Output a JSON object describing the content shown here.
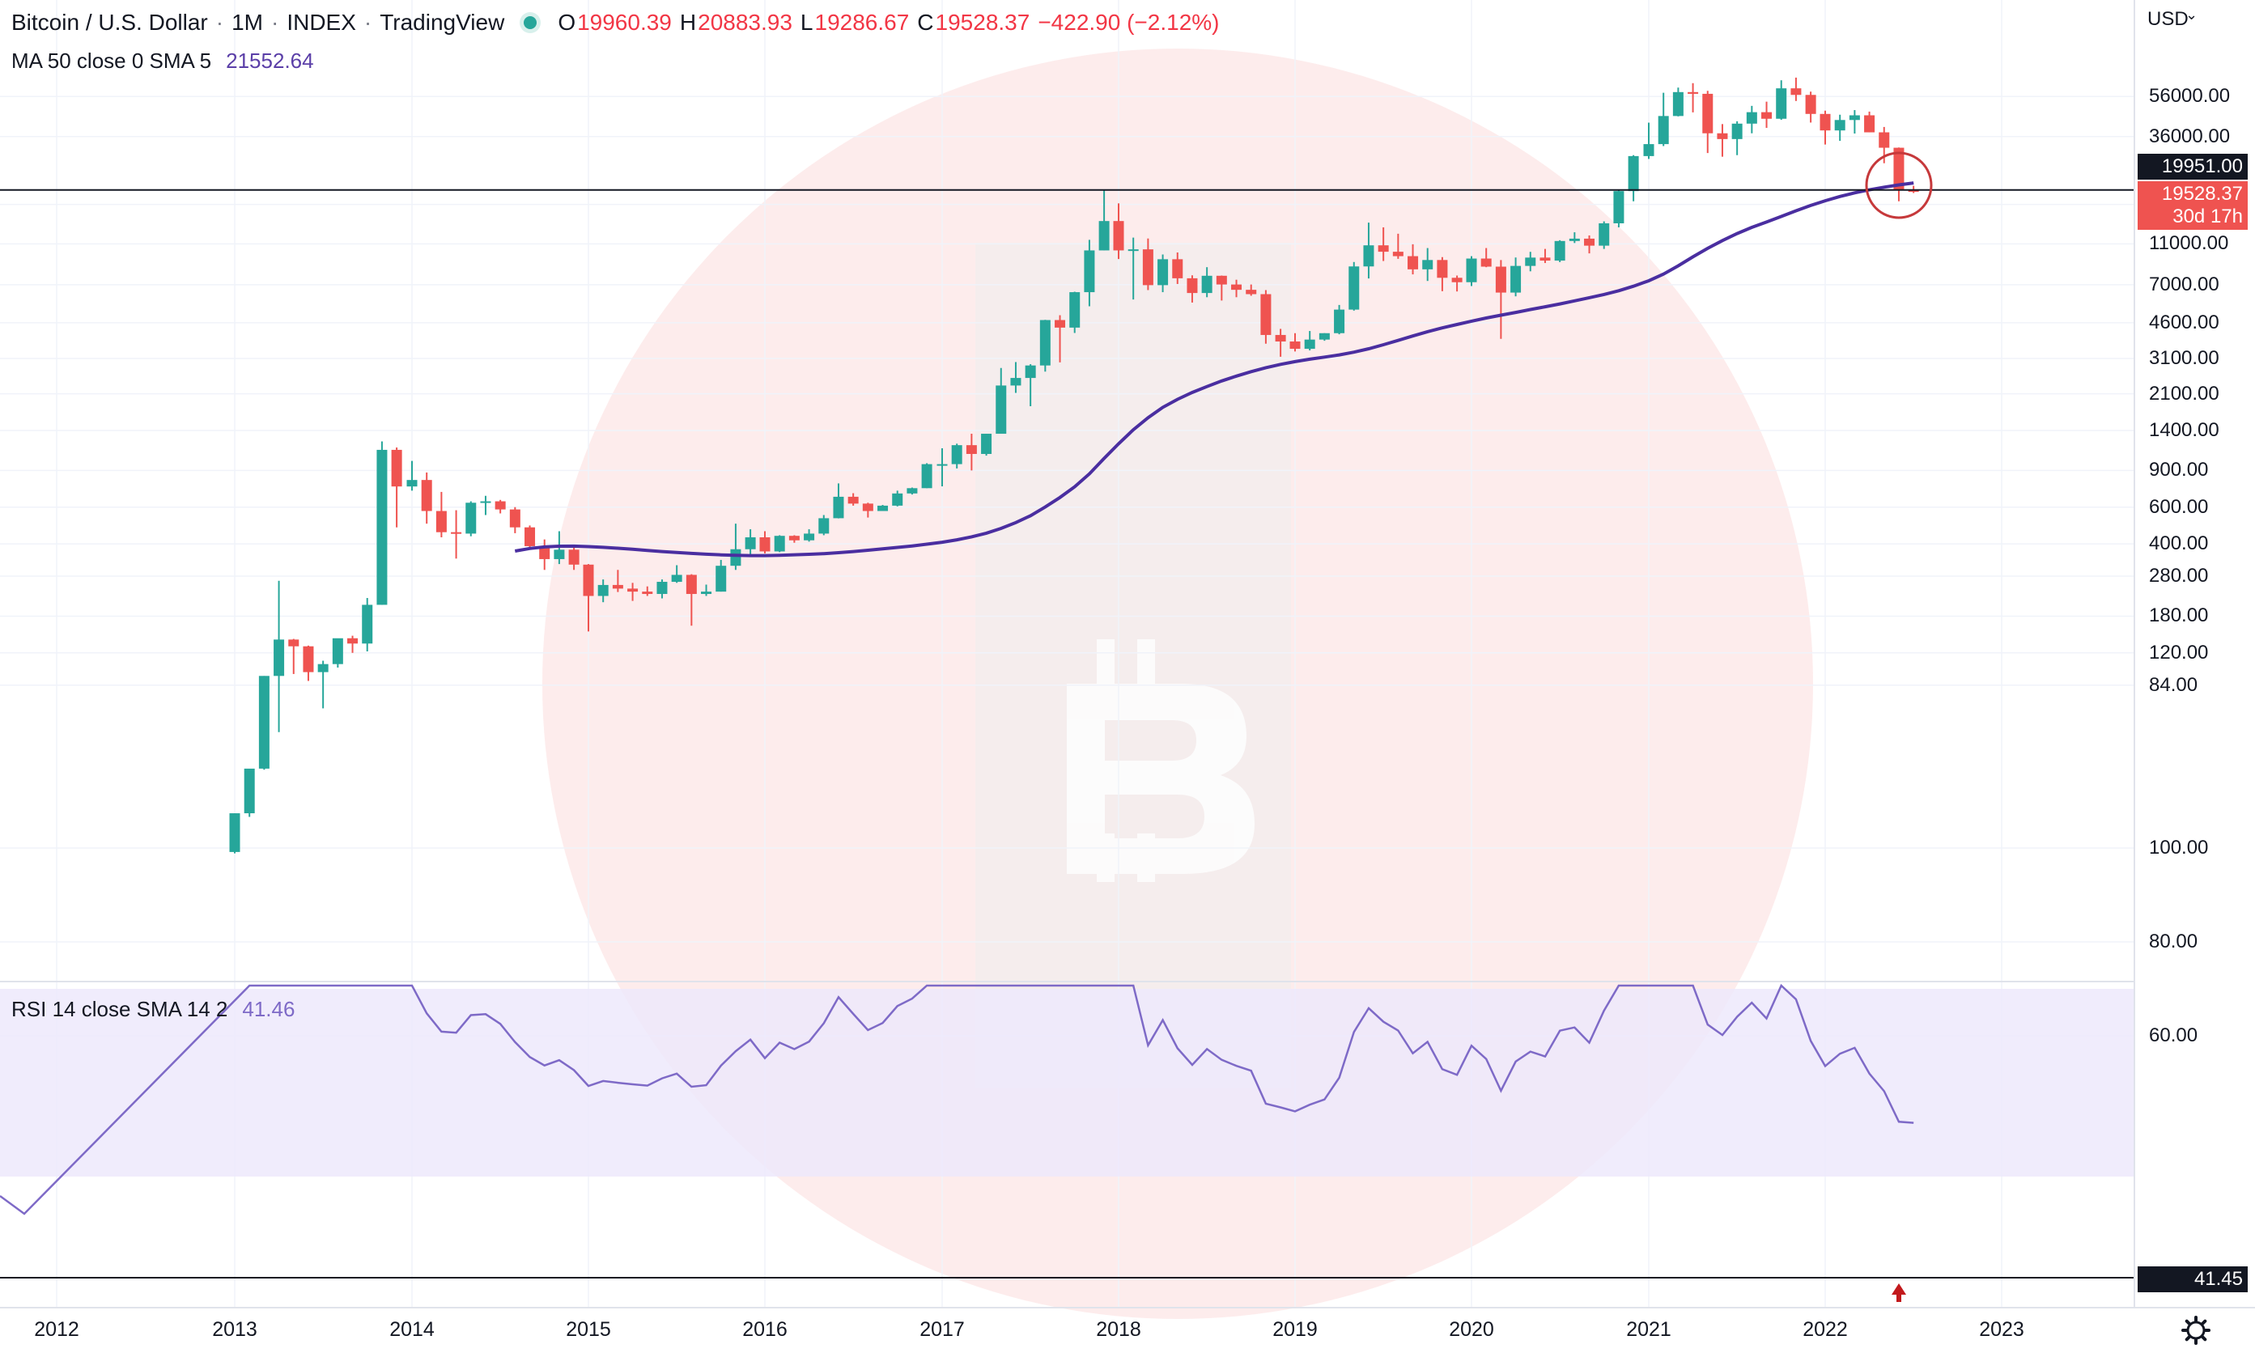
{
  "header": {
    "symbol": "Bitcoin / U.S. Dollar",
    "interval": "1M",
    "exchange": "INDEX",
    "source": "TradingView",
    "ohlc": {
      "o_label": "O",
      "o": "19960.39",
      "h_label": "H",
      "h": "20883.93",
      "l_label": "L",
      "l": "19286.67",
      "c_label": "C",
      "c": "19528.37",
      "change": "−422.90 (−2.12%)"
    },
    "ma_label": "MA 50 close 0 SMA 5",
    "ma_value": "21552.64",
    "rsi_label": "RSI 14 close SMA 14 2",
    "rsi_value": "41.46"
  },
  "price_axis": {
    "currency": "USD",
    "ticks": [
      "56000.00",
      "36000.00",
      "11000.00",
      "7000.00",
      "4600.00",
      "3100.00",
      "2100.00",
      "1400.00",
      "900.00",
      "600.00",
      "400.00",
      "280.00",
      "180.00",
      "120.00",
      "84.00"
    ],
    "horizontal_line_value": "19951.00",
    "last_price": "19528.37",
    "countdown": "30d 17h"
  },
  "rsi_axis": {
    "ticks": [
      "100.00",
      "80.00",
      "60.00"
    ],
    "current": "41.45"
  },
  "time_axis": {
    "labels": [
      "2012",
      "2013",
      "2014",
      "2015",
      "2016",
      "2017",
      "2018",
      "2019",
      "2020",
      "2021",
      "2022",
      "2023"
    ]
  },
  "colors": {
    "up": "#26a69a",
    "down": "#ef5350",
    "ma": "#4a2ea0",
    "rsi": "#7e6ac7",
    "band": "#ede9fb",
    "circle": "#c6393b",
    "watermark": "#fde9e9"
  },
  "icons": {
    "settings": "gear-icon",
    "signal": "arrow-up-icon",
    "logo": "bitcoin-logo"
  },
  "chart_data": [
    {
      "type": "candlestick",
      "scale": "log",
      "note": "Bitcoin monthly OHLC, index price",
      "monthly": [
        [
          "2013-01",
          13.3,
          20.4,
          13.1,
          20.4
        ],
        [
          "2013-02",
          20.4,
          31.9,
          19.6,
          33.4
        ],
        [
          "2013-03",
          33.4,
          93,
          33,
          93
        ],
        [
          "2013-04",
          93,
          266,
          50,
          139
        ],
        [
          "2013-05",
          139,
          140,
          95,
          129
        ],
        [
          "2013-06",
          129,
          130,
          88,
          97
        ],
        [
          "2013-07",
          97,
          110,
          65,
          106
        ],
        [
          "2013-08",
          106,
          140,
          102,
          141
        ],
        [
          "2013-09",
          141,
          145,
          120,
          133
        ],
        [
          "2013-10",
          133,
          220,
          122,
          204
        ],
        [
          "2013-11",
          204,
          1240,
          204,
          1130
        ],
        [
          "2013-12",
          1130,
          1160,
          480,
          754
        ],
        [
          "2014-01",
          754,
          1000,
          720,
          810
        ],
        [
          "2014-02",
          810,
          880,
          500,
          575
        ],
        [
          "2014-03",
          575,
          710,
          430,
          455
        ],
        [
          "2014-04",
          455,
          580,
          340,
          448
        ],
        [
          "2014-05",
          448,
          640,
          435,
          630
        ],
        [
          "2014-06",
          630,
          680,
          550,
          640
        ],
        [
          "2014-07",
          640,
          650,
          560,
          585
        ],
        [
          "2014-08",
          585,
          600,
          450,
          480
        ],
        [
          "2014-09",
          480,
          490,
          380,
          390
        ],
        [
          "2014-10",
          390,
          420,
          300,
          338
        ],
        [
          "2014-11",
          338,
          460,
          320,
          375
        ],
        [
          "2014-12",
          375,
          390,
          300,
          318
        ],
        [
          "2015-01",
          318,
          320,
          152,
          225
        ],
        [
          "2015-02",
          225,
          270,
          210,
          254
        ],
        [
          "2015-03",
          254,
          300,
          235,
          244
        ],
        [
          "2015-04",
          244,
          260,
          213,
          236
        ],
        [
          "2015-05",
          236,
          250,
          225,
          230
        ],
        [
          "2015-06",
          230,
          270,
          219,
          263
        ],
        [
          "2015-07",
          263,
          316,
          260,
          284
        ],
        [
          "2015-08",
          284,
          286,
          162,
          230
        ],
        [
          "2015-09",
          230,
          255,
          225,
          236
        ],
        [
          "2015-10",
          236,
          335,
          236,
          314
        ],
        [
          "2015-11",
          314,
          500,
          300,
          377
        ],
        [
          "2015-12",
          377,
          470,
          350,
          430
        ],
        [
          "2016-01",
          430,
          460,
          360,
          368
        ],
        [
          "2016-02",
          368,
          440,
          365,
          437
        ],
        [
          "2016-03",
          437,
          440,
          405,
          416
        ],
        [
          "2016-04",
          416,
          470,
          410,
          448
        ],
        [
          "2016-05",
          448,
          550,
          440,
          531
        ],
        [
          "2016-06",
          531,
          780,
          530,
          673
        ],
        [
          "2016-07",
          673,
          700,
          610,
          624
        ],
        [
          "2016-08",
          624,
          630,
          535,
          575
        ],
        [
          "2016-09",
          575,
          615,
          590,
          610
        ],
        [
          "2016-10",
          610,
          720,
          605,
          698
        ],
        [
          "2016-11",
          698,
          745,
          690,
          740
        ],
        [
          "2016-12",
          740,
          975,
          740,
          965
        ],
        [
          "2017-01",
          965,
          1150,
          755,
          965
        ],
        [
          "2017-02",
          965,
          1210,
          920,
          1190
        ],
        [
          "2017-03",
          1190,
          1350,
          900,
          1080
        ],
        [
          "2017-04",
          1080,
          1350,
          1060,
          1350
        ],
        [
          "2017-05",
          1350,
          2790,
          1350,
          2300
        ],
        [
          "2017-06",
          2300,
          2980,
          2120,
          2500
        ],
        [
          "2017-07",
          2500,
          2910,
          1830,
          2870
        ],
        [
          "2017-08",
          2870,
          4750,
          2680,
          4740
        ],
        [
          "2017-09",
          4740,
          5000,
          2970,
          4360
        ],
        [
          "2017-10",
          4360,
          6480,
          4110,
          6450
        ],
        [
          "2017-11",
          6450,
          11500,
          5520,
          10230
        ],
        [
          "2017-12",
          10230,
          20090,
          10230,
          14150
        ],
        [
          "2018-01",
          14150,
          17200,
          9300,
          10230
        ],
        [
          "2018-02",
          10230,
          11790,
          5950,
          10350
        ],
        [
          "2018-03",
          10350,
          11670,
          6600,
          6970
        ],
        [
          "2018-04",
          6970,
          9780,
          6450,
          9280
        ],
        [
          "2018-05",
          9280,
          10000,
          7060,
          7520
        ],
        [
          "2018-06",
          7520,
          7770,
          5750,
          6390
        ],
        [
          "2018-07",
          6390,
          8500,
          6100,
          7730
        ],
        [
          "2018-08",
          7730,
          7750,
          5880,
          7020
        ],
        [
          "2018-09",
          7020,
          7400,
          6100,
          6620
        ],
        [
          "2018-10",
          6620,
          7020,
          6200,
          6310
        ],
        [
          "2018-11",
          6310,
          6600,
          3650,
          4020
        ],
        [
          "2018-12",
          4020,
          4300,
          3160,
          3740
        ],
        [
          "2019-01",
          3740,
          4100,
          3350,
          3450
        ],
        [
          "2019-02",
          3450,
          4200,
          3390,
          3820
        ],
        [
          "2019-03",
          3820,
          4100,
          3770,
          4100
        ],
        [
          "2019-04",
          4100,
          5600,
          4050,
          5320
        ],
        [
          "2019-05",
          5320,
          9000,
          5260,
          8570
        ],
        [
          "2019-06",
          8570,
          13900,
          7500,
          10820
        ],
        [
          "2019-07",
          10820,
          13200,
          9100,
          10080
        ],
        [
          "2019-08",
          10080,
          12300,
          9320,
          9600
        ],
        [
          "2019-09",
          9600,
          10950,
          7850,
          8300
        ],
        [
          "2019-10",
          8300,
          10500,
          7300,
          9200
        ],
        [
          "2019-11",
          9200,
          9500,
          6520,
          7560
        ],
        [
          "2019-12",
          7560,
          7750,
          6500,
          7200
        ],
        [
          "2020-01",
          7200,
          9600,
          6900,
          9350
        ],
        [
          "2020-02",
          9350,
          10500,
          8500,
          8550
        ],
        [
          "2020-03",
          8550,
          9200,
          3850,
          6420
        ],
        [
          "2020-04",
          6420,
          9460,
          6160,
          8620
        ],
        [
          "2020-05",
          8620,
          10070,
          8120,
          9450
        ],
        [
          "2020-06",
          9450,
          10400,
          8900,
          9140
        ],
        [
          "2020-07",
          9140,
          11450,
          8990,
          11350
        ],
        [
          "2020-08",
          11350,
          12500,
          11100,
          11650
        ],
        [
          "2020-09",
          11650,
          12070,
          9900,
          10780
        ],
        [
          "2020-10",
          10780,
          14100,
          10400,
          13800
        ],
        [
          "2020-11",
          13800,
          19900,
          13200,
          19700
        ],
        [
          "2020-12",
          19700,
          29300,
          17600,
          29000
        ],
        [
          "2021-01",
          29000,
          41950,
          28100,
          33100
        ],
        [
          "2021-02",
          33100,
          58350,
          32400,
          45150
        ],
        [
          "2021-03",
          45150,
          61800,
          44950,
          58800
        ],
        [
          "2021-04",
          58800,
          64900,
          47000,
          57700
        ],
        [
          "2021-05",
          57700,
          59600,
          30000,
          37300
        ],
        [
          "2021-06",
          37300,
          41300,
          28800,
          35000
        ],
        [
          "2021-07",
          35000,
          42600,
          29300,
          41500
        ],
        [
          "2021-08",
          41500,
          50500,
          37300,
          47100
        ],
        [
          "2021-09",
          47100,
          52900,
          39600,
          43800
        ],
        [
          "2021-10",
          43800,
          67000,
          43300,
          61300
        ],
        [
          "2021-11",
          61300,
          69000,
          53300,
          57000
        ],
        [
          "2021-12",
          57000,
          59100,
          42000,
          46200
        ],
        [
          "2022-01",
          46200,
          47900,
          32950,
          38500
        ],
        [
          "2022-02",
          38500,
          45800,
          34300,
          43200
        ],
        [
          "2022-03",
          43200,
          48200,
          37200,
          45500
        ],
        [
          "2022-04",
          45500,
          47400,
          37700,
          37700
        ],
        [
          "2022-05",
          37700,
          40000,
          26800,
          31800
        ],
        [
          "2022-06",
          31800,
          31900,
          17600,
          19960
        ],
        [
          "2022-07",
          19960,
          20883.93,
          19286.67,
          19528.37
        ]
      ]
    },
    {
      "type": "line",
      "name": "MA 50 close 0 SMA 5",
      "last": 21552.64
    },
    {
      "type": "line",
      "name": "RSI 14 close SMA 14 2",
      "ylim": [
        0,
        100
      ],
      "last": 41.46
    }
  ]
}
